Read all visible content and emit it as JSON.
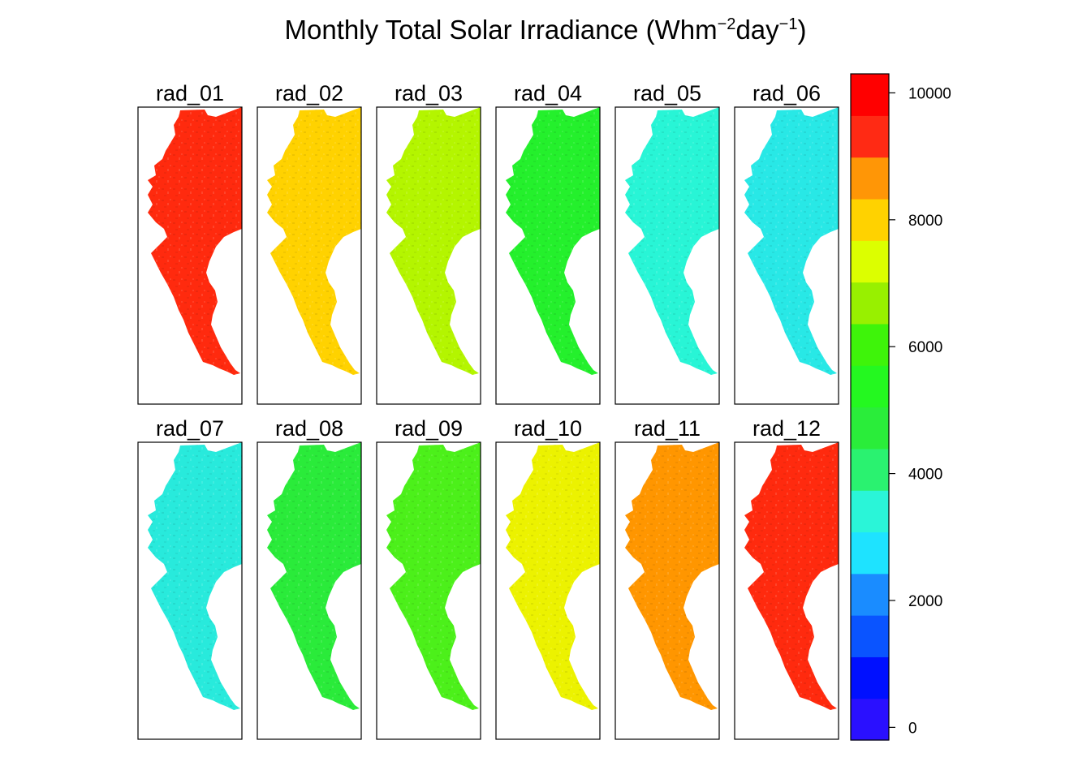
{
  "title": {
    "main": "Monthly Total Solar Irradiance (Whm",
    "sup1": "−2",
    "mid": "day",
    "sup2": "−1",
    "end": ")"
  },
  "chart_data": {
    "type": "heatmap",
    "title": "Monthly Total Solar Irradiance (Whm−2day−1)",
    "layout": {
      "rows": 2,
      "cols": 6
    },
    "panels": [
      {
        "name": "rad_01",
        "dominant_value": 9500,
        "fill": "#ff2a0e"
      },
      {
        "name": "rad_02",
        "dominant_value": 8000,
        "fill": "#ffd200"
      },
      {
        "name": "rad_03",
        "dominant_value": 7000,
        "fill": "#b4f500"
      },
      {
        "name": "rad_04",
        "dominant_value": 5500,
        "fill": "#24f02c"
      },
      {
        "name": "rad_05",
        "dominant_value": 3500,
        "fill": "#28f5d6"
      },
      {
        "name": "rad_06",
        "dominant_value": 3300,
        "fill": "#28e8e6"
      },
      {
        "name": "rad_07",
        "dominant_value": 3300,
        "fill": "#28eadc"
      },
      {
        "name": "rad_08",
        "dominant_value": 5000,
        "fill": "#2aeb3a"
      },
      {
        "name": "rad_09",
        "dominant_value": 6000,
        "fill": "#4cf01a"
      },
      {
        "name": "rad_10",
        "dominant_value": 7500,
        "fill": "#ecf200"
      },
      {
        "name": "rad_11",
        "dominant_value": 8500,
        "fill": "#ff9600"
      },
      {
        "name": "rad_12",
        "dominant_value": 9500,
        "fill": "#ff2a0e"
      }
    ],
    "colorbar": {
      "range": [
        -200,
        10300
      ],
      "ticks": [
        0,
        2000,
        4000,
        6000,
        8000,
        10000
      ],
      "tick_labels": [
        "0",
        "2000",
        "4000",
        "6000",
        "8000",
        "10000"
      ],
      "colors": [
        "#2a10ff",
        "#0010ff",
        "#0a54ff",
        "#1a8cff",
        "#1ee3ff",
        "#2af5d8",
        "#2af270",
        "#2aed3a",
        "#24f820",
        "#3ef40a",
        "#98f000",
        "#dcff00",
        "#ffd200",
        "#ff9606",
        "#ff2a14",
        "#ff0000"
      ]
    }
  }
}
